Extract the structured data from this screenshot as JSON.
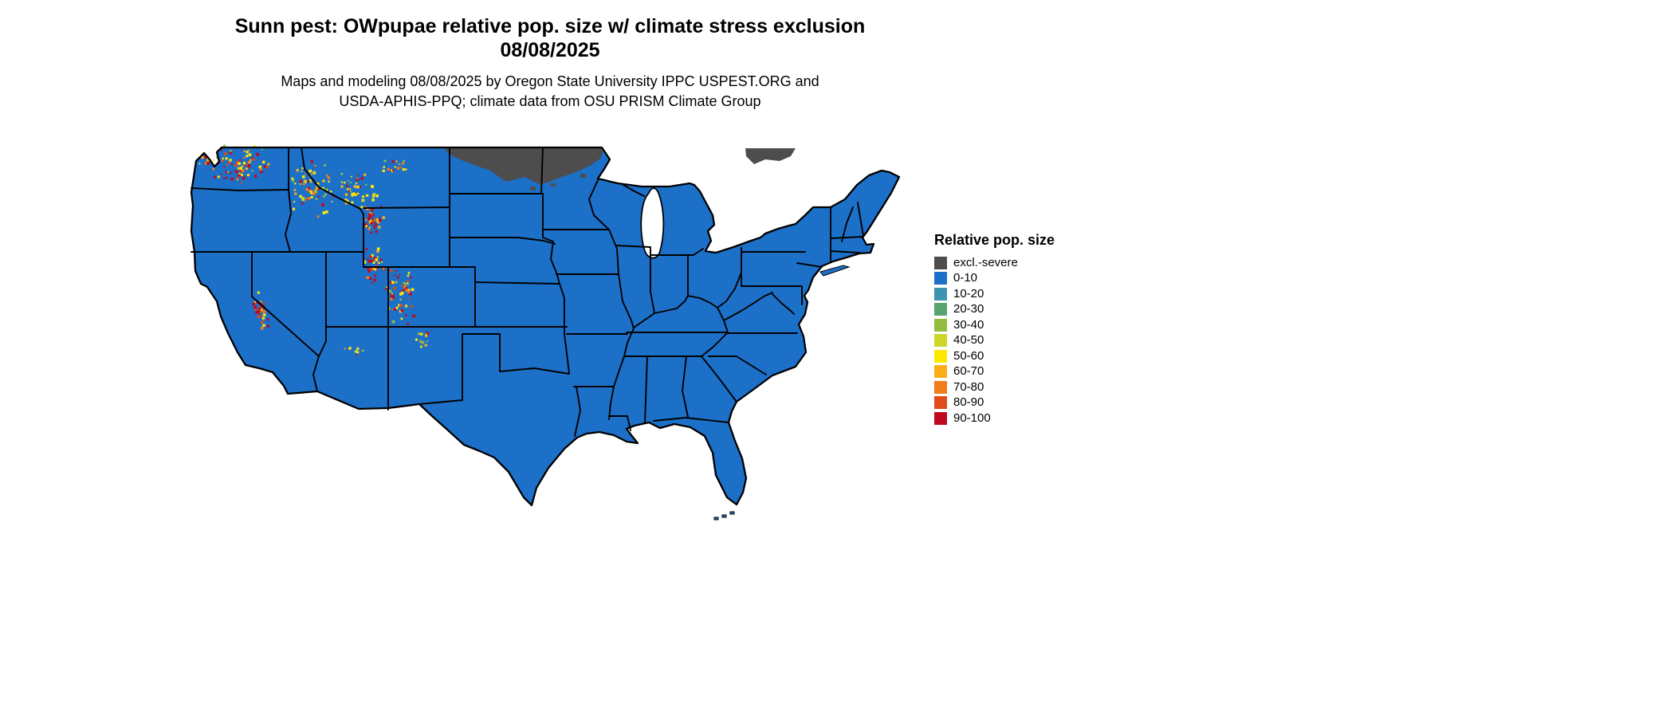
{
  "title": {
    "line1": "Sunn pest: OWpupae relative pop. size w/ climate stress exclusion",
    "line2": "08/08/2025"
  },
  "subtitle": {
    "line1": "Maps and modeling 08/08/2025 by Oregon State University IPPC USPEST.ORG and",
    "line2": "USDA-APHIS-PPQ; climate data from OSU PRISM Climate Group"
  },
  "legend": {
    "title": "Relative pop. size",
    "entries": [
      {
        "label": "excl.-severe",
        "color": "#4d4d4d"
      },
      {
        "label": "0-10",
        "color": "#1c70c8"
      },
      {
        "label": "10-20",
        "color": "#3e93b0"
      },
      {
        "label": "20-30",
        "color": "#57a46f"
      },
      {
        "label": "30-40",
        "color": "#93be3d"
      },
      {
        "label": "40-50",
        "color": "#cdd62b"
      },
      {
        "label": "50-60",
        "color": "#fce903"
      },
      {
        "label": "60-70",
        "color": "#fbae17"
      },
      {
        "label": "70-80",
        "color": "#f07c1c"
      },
      {
        "label": "80-90",
        "color": "#e04b1a"
      },
      {
        "label": "90-100",
        "color": "#bf0a1e"
      }
    ]
  },
  "map": {
    "region": "Continental United States",
    "dominant_class": "0-10",
    "background_color": "#ffffff",
    "border_color": "#000000",
    "excluded_regions": [
      "northern North Dakota and northern Minnesota",
      "patch north of the Great Lakes"
    ],
    "hotspot_regions": [
      "Washington Cascades",
      "Idaho mountains",
      "southwest Montana",
      "Yellowstone / western Wyoming",
      "Utah plateaus",
      "Colorado Rockies",
      "Sierra Nevada",
      "northern New Mexico"
    ]
  }
}
